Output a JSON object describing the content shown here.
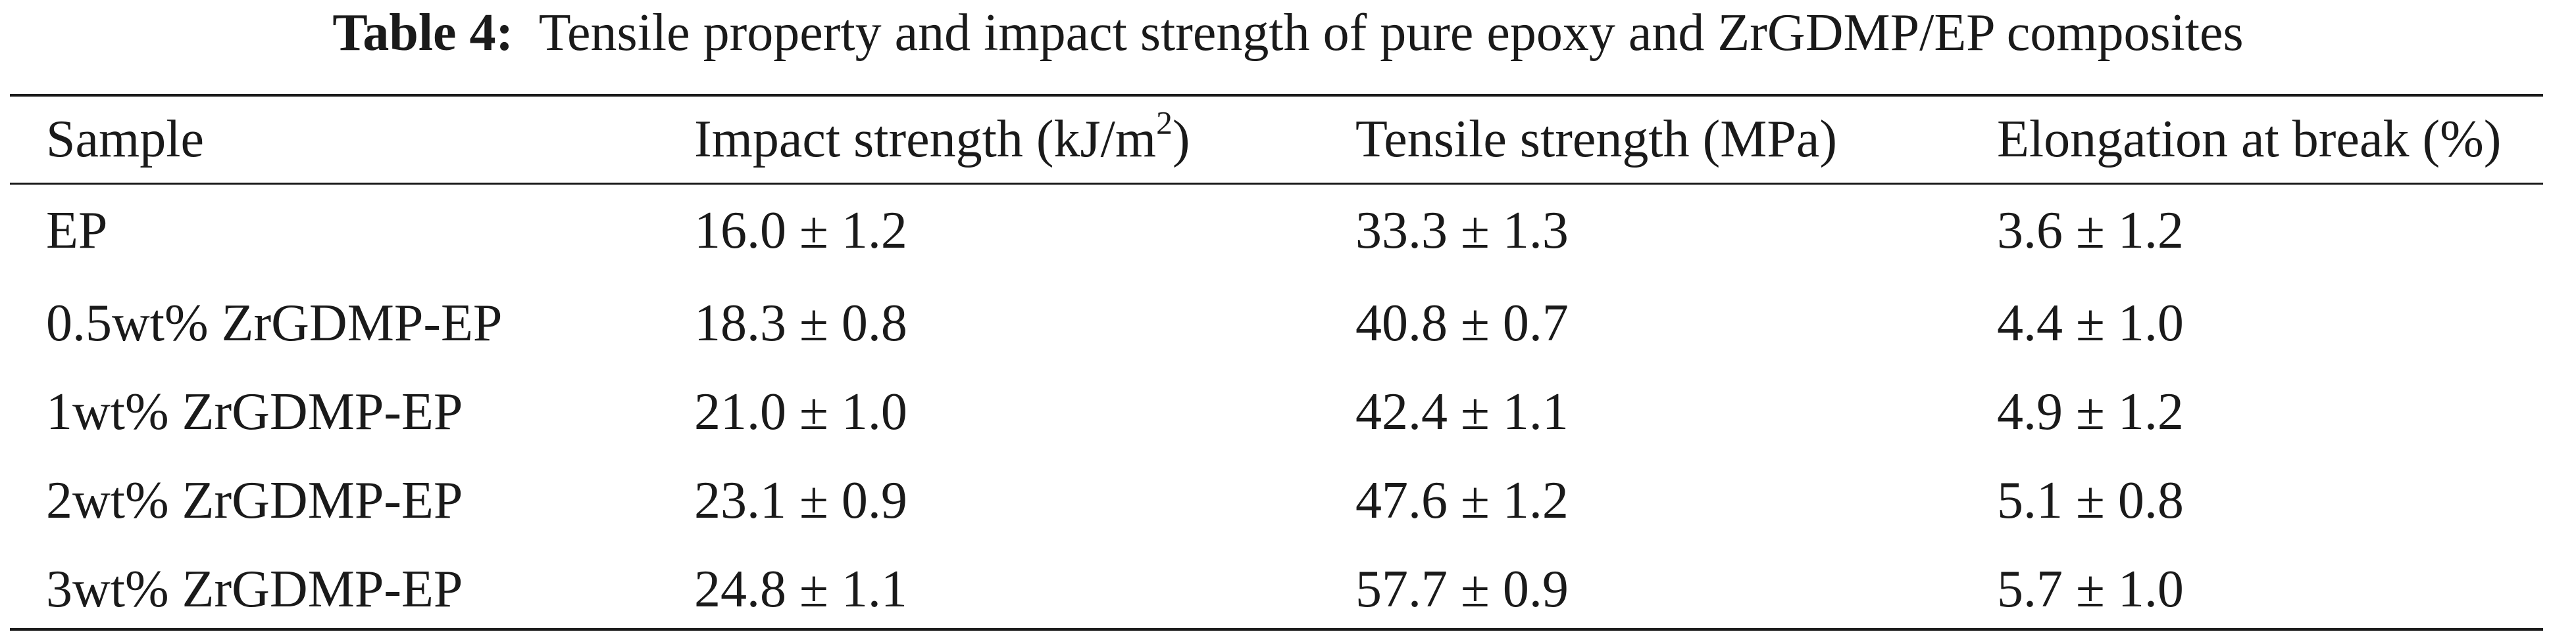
{
  "caption": {
    "label": "Table 4:",
    "text": "Tensile property and impact strength of pure epoxy and ZrGDMP/EP composites"
  },
  "table": {
    "headers": {
      "sample": "Sample",
      "impact_main": "Impact strength (kJ/m",
      "impact_sup": "2",
      "impact_close": ")",
      "tensile": "Tensile strength (MPa)",
      "elongation": "Elongation at break (%)"
    },
    "rows": [
      {
        "sample": "EP",
        "impact": "16.0 ± 1.2",
        "tensile": "33.3 ± 1.3",
        "elongation": "3.6 ± 1.2"
      },
      {
        "sample": "0.5wt% ZrGDMP-EP",
        "impact": "18.3 ± 0.8",
        "tensile": "40.8 ± 0.7",
        "elongation": "4.4 ± 1.0"
      },
      {
        "sample": "1wt% ZrGDMP-EP",
        "impact": "21.0 ± 1.0",
        "tensile": "42.4 ± 1.1",
        "elongation": "4.9 ± 1.2"
      },
      {
        "sample": "2wt% ZrGDMP-EP",
        "impact": "23.1 ± 0.9",
        "tensile": "47.6 ± 1.2",
        "elongation": "5.1 ± 0.8"
      },
      {
        "sample": "3wt% ZrGDMP-EP",
        "impact": "24.8 ± 1.1",
        "tensile": "57.7 ± 0.9",
        "elongation": "5.7 ± 1.0"
      }
    ]
  }
}
